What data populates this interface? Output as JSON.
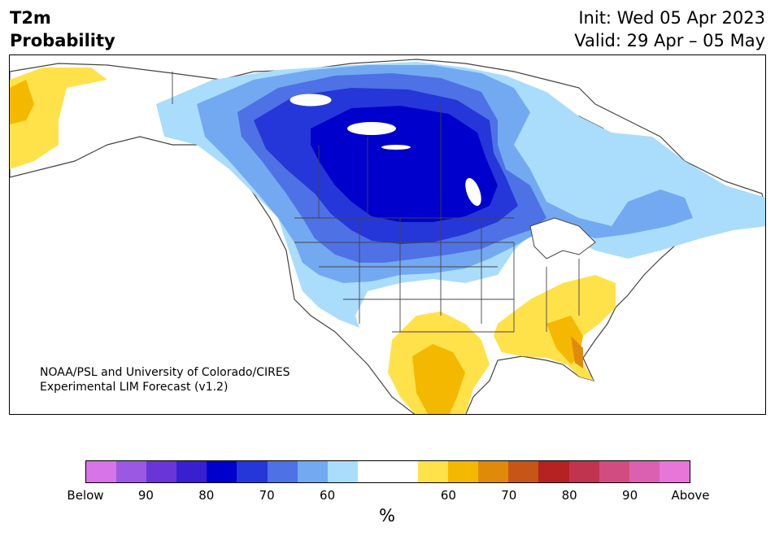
{
  "header": {
    "variable": "T2m",
    "product": "Probability",
    "init": "Init: Wed 05 Apr 2023",
    "valid": "Valid: 29 Apr – 05 May"
  },
  "credit": {
    "line1": "NOAA/PSL and University of Colorado/CIRES",
    "line2": "Experimental LIM Forecast (v1.2)"
  },
  "colorbar": {
    "unit": "%",
    "colors": [
      "#d774e8",
      "#9b59e3",
      "#6a35d6",
      "#3a1fd1",
      "#0000cd",
      "#2537d8",
      "#4e71e6",
      "#73a9f0",
      "#aadcfc",
      "#ffffff",
      "#ffffff",
      "#ffe24a",
      "#f5b800",
      "#e08a0a",
      "#c85518",
      "#b42222",
      "#c0344f",
      "#d24d7f",
      "#dc60b2",
      "#e875d8"
    ],
    "ticks": [
      "Below",
      "90",
      "80",
      "70",
      "60",
      "60",
      "70",
      "80",
      "90",
      "Above"
    ]
  },
  "map": {
    "colors": {
      "land": "#ffffff",
      "ocean": "#ffffff",
      "border": "#444444",
      "below_90": "#0000cd",
      "below_80": "#2537d8",
      "below_70": "#4e71e6",
      "below_60": "#73a9f0",
      "below_50": "#aadcfc",
      "above_50": "#ffe24a",
      "above_60": "#f5b800",
      "above_70": "#e08a0a"
    }
  }
}
